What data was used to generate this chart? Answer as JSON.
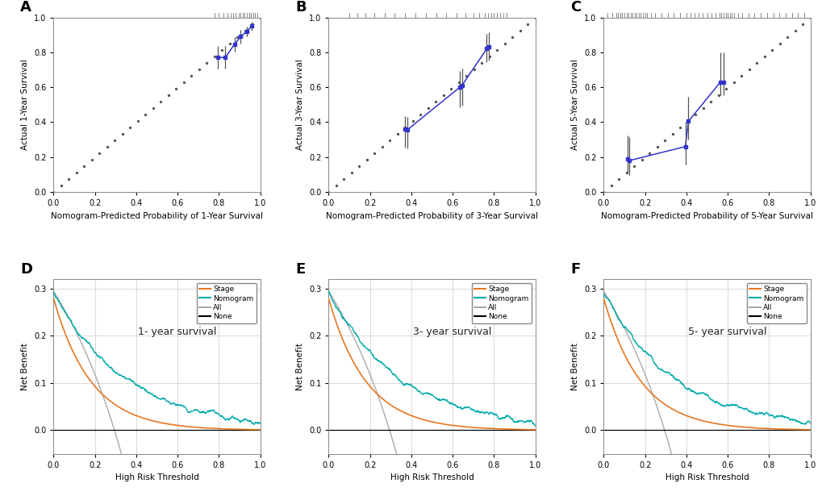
{
  "calib_A": {
    "xlabel": "Nomogram-Predicted Probability of 1~Year Survival",
    "ylabel": "Actual 1~Year Survival",
    "cal_x": [
      0.795,
      0.83,
      0.875,
      0.905,
      0.935,
      0.96
    ],
    "cal_y": [
      0.77,
      0.77,
      0.845,
      0.89,
      0.92,
      0.95
    ],
    "cal_yerr_low": [
      0.065,
      0.065,
      0.04,
      0.038,
      0.028,
      0.025
    ],
    "cal_yerr_high": [
      0.065,
      0.065,
      0.04,
      0.038,
      0.028,
      0.025
    ],
    "rug_x": [
      0.78,
      0.8,
      0.82,
      0.84,
      0.855,
      0.87,
      0.88,
      0.895,
      0.905,
      0.915,
      0.925,
      0.935,
      0.945,
      0.955,
      0.965,
      0.975,
      0.985
    ],
    "xlim": [
      0.0,
      1.0
    ],
    "ylim": [
      0.0,
      1.0
    ],
    "xticks": [
      0.0,
      0.2,
      0.4,
      0.6,
      0.8,
      1.0
    ],
    "yticks": [
      0.0,
      0.2,
      0.4,
      0.6,
      0.8,
      1.0
    ]
  },
  "calib_B": {
    "xlabel": "Nomogram-Predicted Probability of 3~Year Survival",
    "ylabel": "Actual 3~Year Survival",
    "cal_x": [
      0.37,
      0.38,
      0.635,
      0.645,
      0.765,
      0.775
    ],
    "cal_y": [
      0.36,
      0.355,
      0.6,
      0.61,
      0.82,
      0.83
    ],
    "cal_yerr_low": [
      0.105,
      0.105,
      0.115,
      0.115,
      0.075,
      0.075
    ],
    "cal_yerr_high": [
      0.075,
      0.075,
      0.095,
      0.095,
      0.085,
      0.085
    ],
    "rug_x": [
      0.1,
      0.14,
      0.18,
      0.22,
      0.27,
      0.32,
      0.37,
      0.42,
      0.47,
      0.52,
      0.57,
      0.62,
      0.66,
      0.7,
      0.73,
      0.755,
      0.77,
      0.785,
      0.8,
      0.815,
      0.83,
      0.845,
      0.86
    ],
    "xlim": [
      0.0,
      1.0
    ],
    "ylim": [
      0.0,
      1.0
    ],
    "xticks": [
      0.0,
      0.2,
      0.4,
      0.6,
      0.8,
      1.0
    ],
    "yticks": [
      0.0,
      0.2,
      0.4,
      0.6,
      0.8,
      1.0
    ]
  },
  "calib_C": {
    "xlabel": "Nomogram-Predicted Probability of 5~Year Survival",
    "ylabel": "Actual 5~Year Survival",
    "cal_x": [
      0.115,
      0.125,
      0.395,
      0.41,
      0.565,
      0.578
    ],
    "cal_y": [
      0.19,
      0.18,
      0.26,
      0.405,
      0.63,
      0.63
    ],
    "cal_yerr_low": [
      0.085,
      0.085,
      0.105,
      0.105,
      0.075,
      0.075
    ],
    "cal_yerr_high": [
      0.135,
      0.135,
      0.14,
      0.14,
      0.17,
      0.17
    ],
    "rug_x": [
      0.02,
      0.04,
      0.06,
      0.07,
      0.08,
      0.09,
      0.1,
      0.11,
      0.12,
      0.13,
      0.14,
      0.15,
      0.16,
      0.17,
      0.18,
      0.19,
      0.2,
      0.21,
      0.23,
      0.25,
      0.28,
      0.31,
      0.34,
      0.37,
      0.4,
      0.42,
      0.44,
      0.46,
      0.48,
      0.5,
      0.52,
      0.54,
      0.56,
      0.57,
      0.58,
      0.59,
      0.6,
      0.61,
      0.62,
      0.63,
      0.65,
      0.67,
      0.7,
      0.73,
      0.76,
      0.79,
      0.82,
      0.85,
      0.88,
      0.91,
      0.94,
      0.97
    ],
    "xlim": [
      0.0,
      1.0
    ],
    "ylim": [
      0.0,
      1.0
    ],
    "xticks": [
      0.0,
      0.2,
      0.4,
      0.6,
      0.8,
      1.0
    ],
    "yticks": [
      0.0,
      0.2,
      0.4,
      0.6,
      0.8,
      1.0
    ]
  },
  "dca_labels": [
    "1- year survival",
    "3- year survival",
    "5- year survival"
  ],
  "dca_panel_letters": [
    "D",
    "E",
    "F"
  ],
  "dca_xlabel": "High Risk Threshold",
  "dca_ylabel": "Net Benefit",
  "dca_xlim": [
    0.0,
    1.0
  ],
  "dca_ylim": [
    -0.05,
    0.32
  ],
  "dca_yticks": [
    0.0,
    0.1,
    0.2,
    0.3
  ],
  "dca_xticks": [
    0.0,
    0.2,
    0.4,
    0.6,
    0.8,
    1.0
  ],
  "legend_entries": [
    "Stage",
    "Nomogram",
    "All",
    "None"
  ],
  "colors": {
    "blue": "#3333CC",
    "orange": "#E87722",
    "teal": "#00AAAA",
    "gray_all": "#AAAAAA",
    "black": "#000000",
    "dot_diag": "#555555"
  },
  "bg_color": "#FFFFFF",
  "panel_label_fontsize": 13,
  "axis_label_fontsize": 7.5,
  "tick_fontsize": 7
}
